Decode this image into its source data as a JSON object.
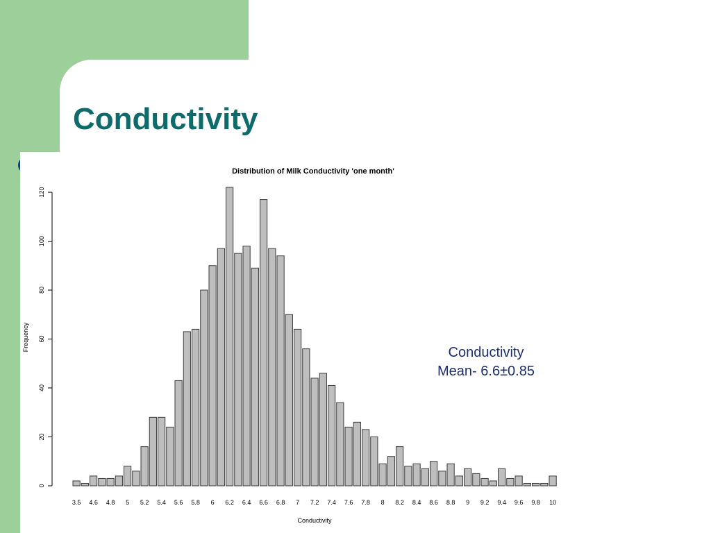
{
  "slide": {
    "title": "Conductivity",
    "annotation": {
      "line1": "Conductivity",
      "line2": "Mean- 6.6±0.85"
    },
    "colors": {
      "background_green": "#9dcf9a",
      "title_teal": "#0e6b6b",
      "annotation_navy": "#1d2f6e",
      "bar_fill": "#bebebe"
    }
  },
  "chart_data": {
    "type": "bar",
    "title": "Distribution of Milk Conductivity 'one month'",
    "xlabel": "Conductivity",
    "ylabel": "Frequency",
    "ylim": [
      0,
      120
    ],
    "yticks": [
      0,
      20,
      40,
      60,
      80,
      100,
      120
    ],
    "grid": false,
    "categories": [
      "3.5",
      "4.5",
      "4.6",
      "4.7",
      "4.8",
      "4.9",
      "5",
      "5.1",
      "5.2",
      "5.3",
      "5.4",
      "5.5",
      "5.6",
      "5.7",
      "5.8",
      "5.9",
      "6",
      "6.1",
      "6.2",
      "6.3",
      "6.4",
      "6.5",
      "6.6",
      "6.7",
      "6.8",
      "6.9",
      "7",
      "7.1",
      "7.2",
      "7.3",
      "7.4",
      "7.5",
      "7.6",
      "7.7",
      "7.8",
      "7.9",
      "8",
      "8.1",
      "8.2",
      "8.3",
      "8.4",
      "8.5",
      "8.6",
      "8.7",
      "8.8",
      "8.9",
      "9",
      "9.1",
      "9.2",
      "9.3",
      "9.4",
      "9.5",
      "9.6",
      "9.7",
      "9.8",
      "9.9",
      "10"
    ],
    "values": [
      2,
      1,
      4,
      3,
      3,
      4,
      8,
      6,
      16,
      28,
      28,
      24,
      43,
      63,
      64,
      80,
      90,
      97,
      122,
      95,
      98,
      89,
      117,
      97,
      94,
      70,
      64,
      56,
      44,
      46,
      41,
      34,
      24,
      26,
      23,
      20,
      9,
      12,
      16,
      8,
      9,
      7,
      10,
      6,
      9,
      4,
      7,
      5,
      3,
      2,
      7,
      3,
      4,
      1,
      1,
      1,
      4
    ],
    "tick_labels": [
      "3.5",
      "4.6",
      "4.8",
      "5",
      "5.2",
      "5.4",
      "5.6",
      "5.8",
      "6",
      "6.2",
      "6.4",
      "6.6",
      "6.8",
      "7",
      "7.2",
      "7.4",
      "7.6",
      "7.8",
      "8",
      "8.2",
      "8.4",
      "8.6",
      "8.8",
      "9",
      "9.2",
      "9.4",
      "9.6",
      "9.8",
      "10"
    ]
  }
}
